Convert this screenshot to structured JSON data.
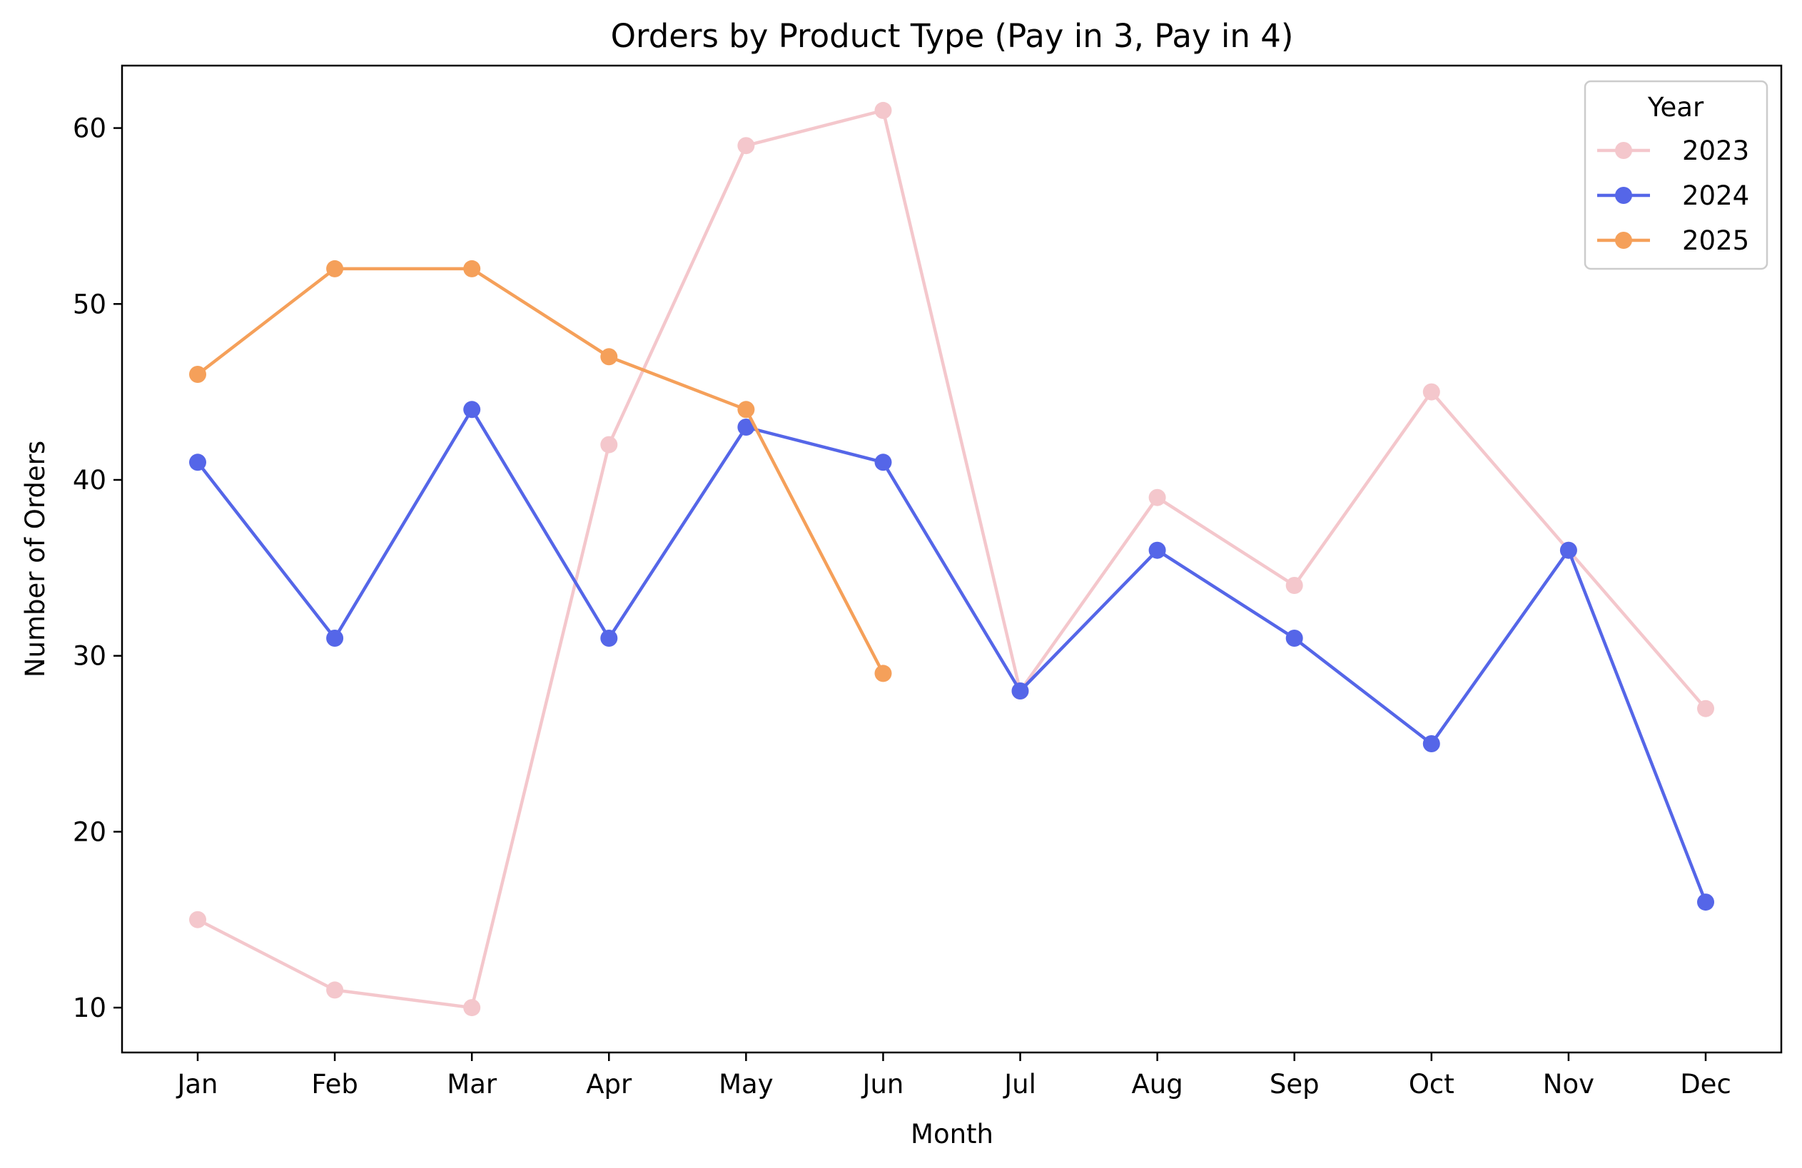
{
  "chart_data": {
    "type": "line",
    "title": "Orders by Product Type (Pay in 3, Pay in 4)",
    "xlabel": "Month",
    "ylabel": "Number of Orders",
    "categories": [
      "Jan",
      "Feb",
      "Mar",
      "Apr",
      "May",
      "Jun",
      "Jul",
      "Aug",
      "Sep",
      "Oct",
      "Nov",
      "Dec"
    ],
    "ylim": [
      7.45,
      63.55
    ],
    "yticks": [
      10,
      20,
      30,
      40,
      50,
      60
    ],
    "grid": false,
    "legend": {
      "title": "Year",
      "placement": "top-right"
    },
    "series": [
      {
        "name": "2023",
        "color": "#f4c7cc",
        "values": [
          15,
          11,
          10,
          42,
          59,
          61,
          28,
          39,
          34,
          45,
          36,
          27
        ]
      },
      {
        "name": "2024",
        "color": "#5566e8",
        "values": [
          41,
          31,
          44,
          31,
          43,
          41,
          28,
          36,
          31,
          25,
          36,
          16
        ]
      },
      {
        "name": "2025",
        "color": "#f5a05a",
        "values": [
          46,
          52,
          52,
          47,
          44,
          29,
          null,
          null,
          null,
          null,
          null,
          null
        ]
      }
    ]
  }
}
